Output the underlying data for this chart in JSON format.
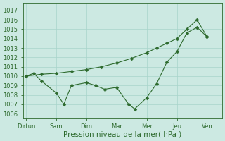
{
  "xlabel": "Pression niveau de la mer( hPa )",
  "background_color": "#cce9e2",
  "line_color": "#2d6a2d",
  "grid_color": "#a8d4cb",
  "ylim": [
    1005.5,
    1017.8
  ],
  "yticks": [
    1006,
    1007,
    1008,
    1009,
    1010,
    1011,
    1012,
    1013,
    1014,
    1015,
    1016,
    1017
  ],
  "xtick_labels": [
    "Dirtun",
    "Sam",
    "Dim",
    "Mar",
    "Mer",
    "Jeu",
    "Ven"
  ],
  "xtick_positions": [
    0,
    1,
    2,
    3,
    4,
    5,
    6
  ],
  "xlim": [
    -0.1,
    6.5
  ],
  "series1_x": [
    0,
    0.25,
    0.5,
    1.0,
    1.25,
    1.5,
    2.0,
    2.3,
    2.6,
    3.0,
    3.4,
    3.6,
    4.0,
    4.33,
    4.67,
    5.0,
    5.33,
    5.67,
    6.0
  ],
  "series1_y": [
    1010.0,
    1010.3,
    1009.5,
    1008.2,
    1007.0,
    1009.0,
    1009.3,
    1009.0,
    1008.6,
    1008.8,
    1007.0,
    1006.5,
    1007.7,
    1009.2,
    1011.5,
    1012.6,
    1014.6,
    1015.2,
    1014.2
  ],
  "series2_x": [
    0,
    0.5,
    1.0,
    1.5,
    2.0,
    2.5,
    3.0,
    3.5,
    4.0,
    4.33,
    4.67,
    5.0,
    5.33,
    5.67,
    6.0
  ],
  "series2_y": [
    1010.0,
    1010.2,
    1010.3,
    1010.5,
    1010.7,
    1011.0,
    1011.4,
    1011.9,
    1012.5,
    1013.0,
    1013.5,
    1014.0,
    1015.0,
    1016.0,
    1014.2
  ],
  "fontsize_ticks": 6,
  "fontsize_xlabel": 7.5,
  "marker_size": 2.5,
  "linewidth": 0.8
}
